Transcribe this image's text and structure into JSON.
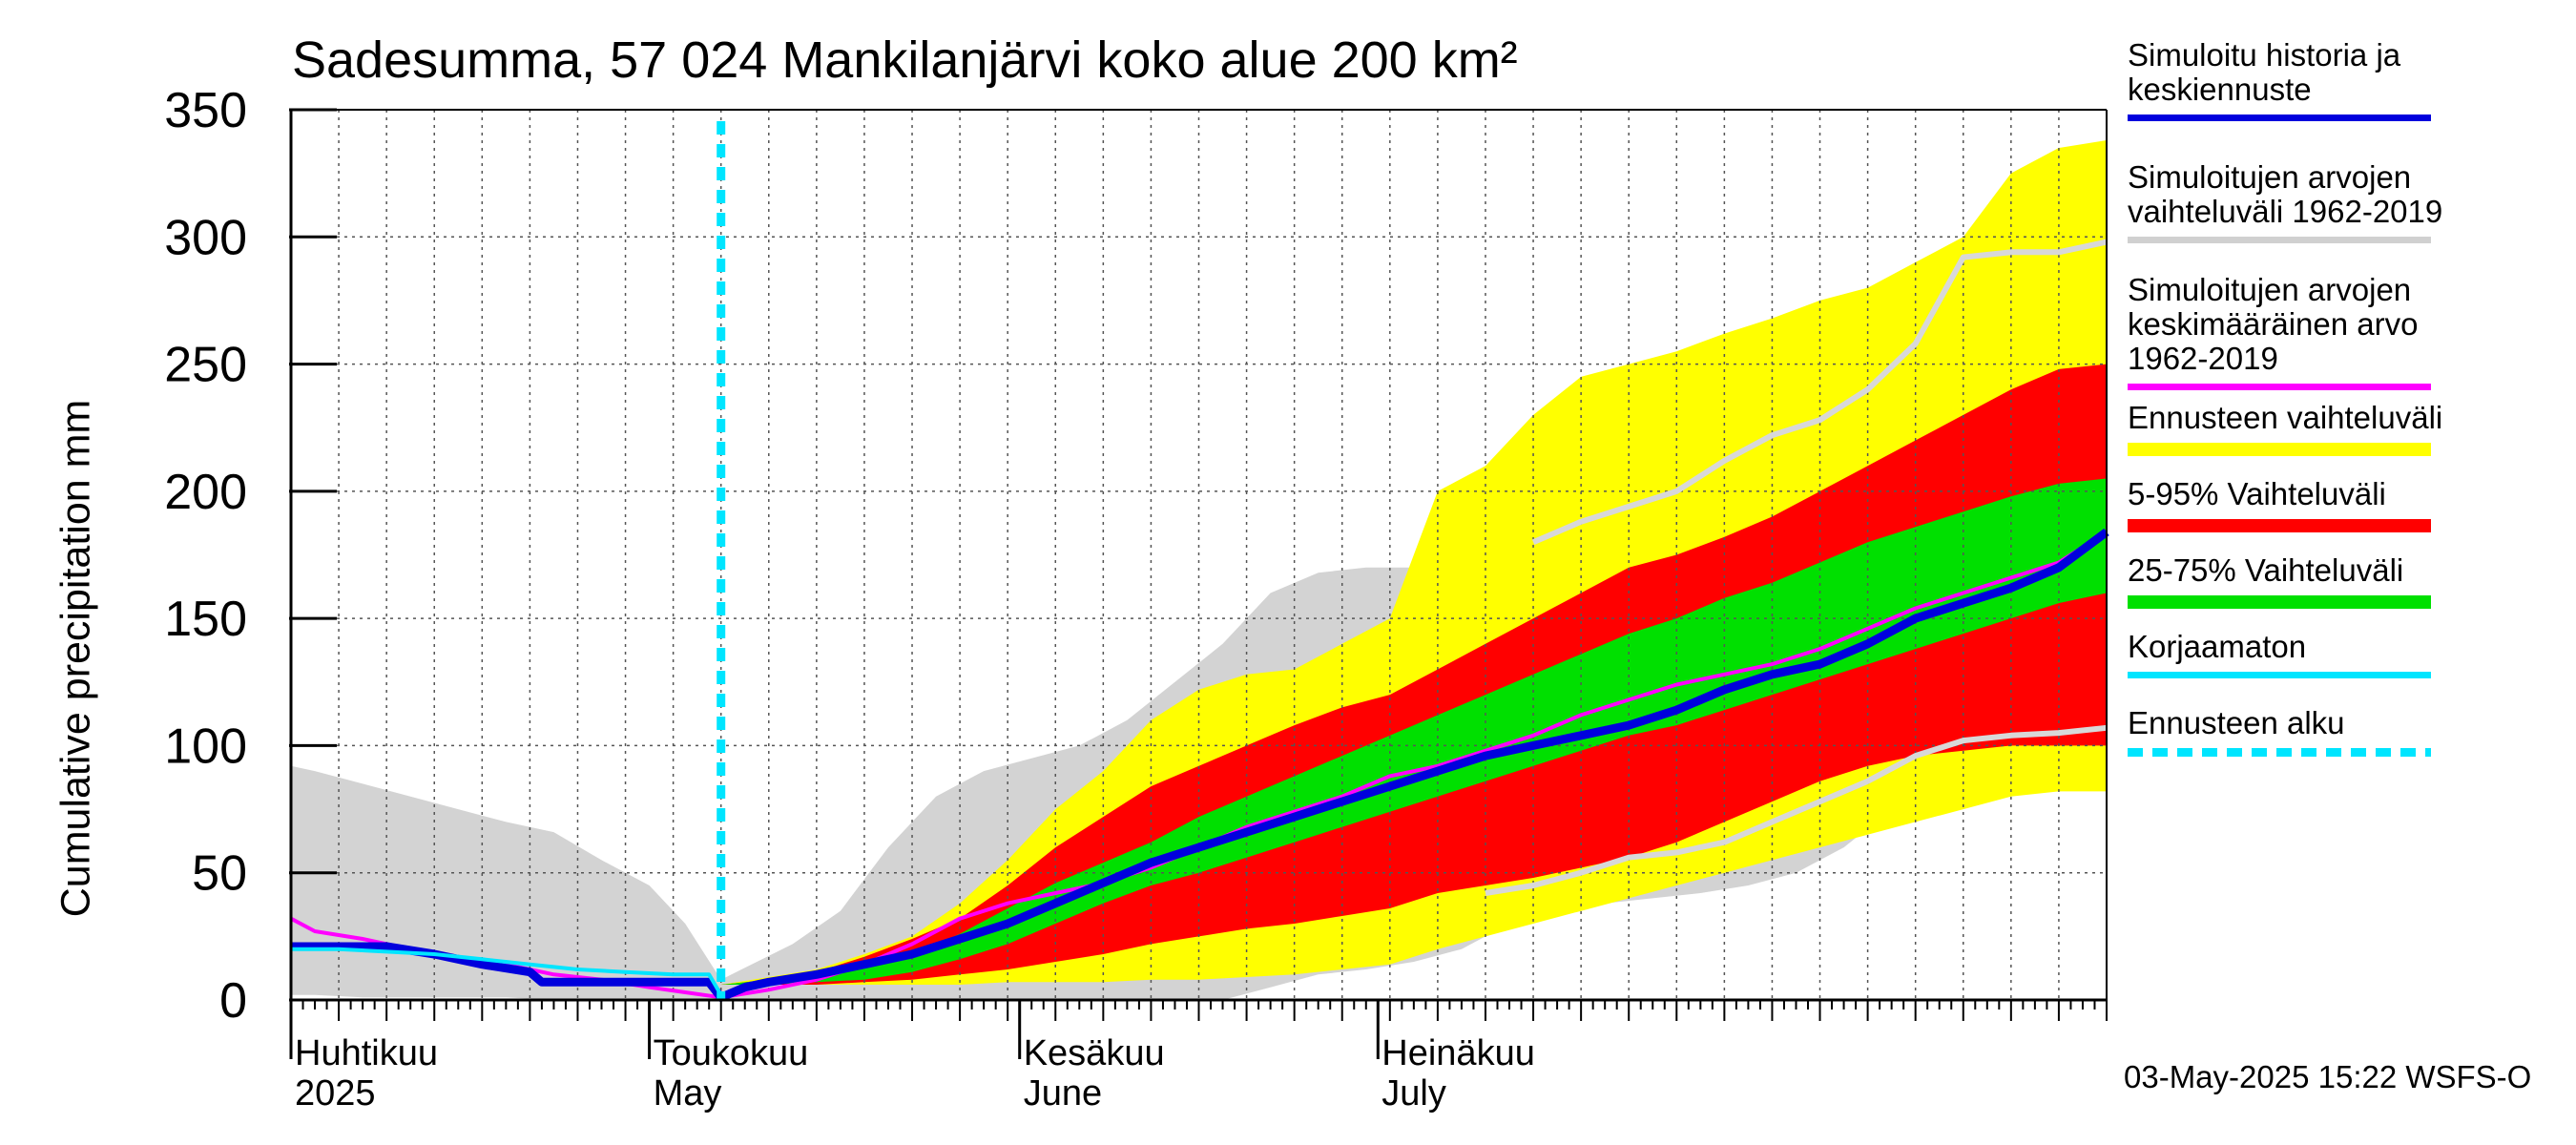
{
  "title": "Sadesumma, 57 024 Mankilanjärvi koko alue 200 km²",
  "timestamp": "03-May-2025 15:22 WSFS-O",
  "chart_data": {
    "type": "area",
    "ylabel": "Cumulative precipitation   mm",
    "ylim": [
      0,
      350
    ],
    "y_ticks": [
      0,
      50,
      100,
      150,
      200,
      250,
      300,
      350
    ],
    "x_range_days": [
      0,
      152
    ],
    "x_start_date": "2025-03-27",
    "forecast_start_day": 36,
    "month_labels": [
      {
        "day": 5,
        "fi": "Huhtikuu",
        "en": "2025"
      },
      {
        "day": 35,
        "fi": "Toukokuu",
        "en": "May"
      },
      {
        "day": 66,
        "fi": "Kesäkuu",
        "en": "June"
      },
      {
        "day": 96,
        "fi": "Heinäkuu",
        "en": "July"
      }
    ],
    "legend": [
      {
        "label": "Simuloitu historia ja\nkeskiennuste",
        "color": "#0000dd",
        "style": "line"
      },
      {
        "label": "Simuloitujen arvojen\nvaihteluväli 1962-2019",
        "color": "#d0d0d0",
        "style": "line"
      },
      {
        "label": "Simuloitujen arvojen\nkeskimääräinen arvo\n   1962-2019",
        "color": "#ff00ff",
        "style": "line"
      },
      {
        "label": "Ennusteen vaihteluväli",
        "color": "#ffff00",
        "style": "band"
      },
      {
        "label": "5-95% Vaihteluväli",
        "color": "#ff0000",
        "style": "band"
      },
      {
        "label": "25-75% Vaihteluväli",
        "color": "#00e000",
        "style": "band"
      },
      {
        "label": "Korjaamaton",
        "color": "#00e5ff",
        "style": "line"
      },
      {
        "label": "Ennusteen alku",
        "color": "#00e5ff",
        "style": "dotted"
      }
    ],
    "series": [
      {
        "key": "hist_band",
        "x": [
          0,
          2,
          6,
          10,
          14,
          18,
          22,
          26,
          30,
          33,
          36,
          39,
          42,
          46,
          50,
          54,
          58,
          62,
          66,
          70,
          74,
          78,
          82,
          86,
          90,
          94,
          98,
          102,
          106,
          110,
          114,
          118,
          122,
          126,
          130,
          134,
          138,
          142,
          146,
          150,
          152
        ],
        "upper": [
          92,
          90,
          85,
          80,
          75,
          70,
          66,
          55,
          45,
          30,
          8,
          15,
          22,
          35,
          60,
          80,
          90,
          95,
          100,
          110,
          125,
          140,
          160,
          168,
          170,
          170,
          175,
          182,
          190,
          195,
          205,
          215,
          225,
          235,
          250,
          275,
          295,
          295,
          295,
          298,
          298
        ],
        "lower": [
          2,
          2,
          1,
          1,
          1,
          1,
          0,
          0,
          0,
          0,
          0,
          0,
          0,
          0,
          0,
          0,
          0,
          0,
          0,
          0,
          0,
          0,
          5,
          10,
          12,
          15,
          20,
          30,
          35,
          38,
          40,
          42,
          45,
          50,
          60,
          75,
          85,
          95,
          100,
          103,
          105
        ]
      },
      {
        "key": "forecast_range",
        "x": [
          36,
          40,
          44,
          48,
          52,
          56,
          60,
          64,
          68,
          72,
          76,
          80,
          84,
          88,
          92,
          96,
          100,
          104,
          108,
          112,
          116,
          120,
          124,
          128,
          132,
          136,
          140,
          144,
          148,
          152
        ],
        "upper": [
          6,
          9,
          12,
          18,
          25,
          38,
          55,
          75,
          90,
          110,
          122,
          128,
          130,
          140,
          150,
          200,
          210,
          230,
          245,
          250,
          255,
          262,
          268,
          275,
          280,
          290,
          300,
          325,
          335,
          338
        ],
        "lower": [
          6,
          6,
          6,
          6,
          6,
          6,
          7,
          7,
          7,
          8,
          8,
          9,
          10,
          12,
          14,
          20,
          25,
          30,
          35,
          40,
          45,
          50,
          55,
          60,
          65,
          70,
          75,
          80,
          82,
          82
        ]
      },
      {
        "key": "p5_95",
        "x": [
          36,
          40,
          44,
          48,
          52,
          56,
          60,
          64,
          68,
          72,
          76,
          80,
          84,
          88,
          92,
          96,
          100,
          104,
          108,
          112,
          116,
          120,
          124,
          128,
          132,
          136,
          140,
          144,
          148,
          152
        ],
        "upper": [
          6,
          8,
          11,
          17,
          24,
          32,
          45,
          60,
          72,
          84,
          92,
          100,
          108,
          115,
          120,
          130,
          140,
          150,
          160,
          170,
          175,
          182,
          190,
          200,
          210,
          220,
          230,
          240,
          248,
          250
        ],
        "lower": [
          6,
          6,
          6,
          7,
          8,
          10,
          12,
          15,
          18,
          22,
          25,
          28,
          30,
          33,
          36,
          42,
          45,
          48,
          52,
          56,
          62,
          70,
          78,
          86,
          92,
          96,
          98,
          100,
          100,
          100
        ]
      },
      {
        "key": "p25_75",
        "x": [
          36,
          40,
          44,
          48,
          52,
          56,
          60,
          64,
          68,
          72,
          76,
          80,
          84,
          88,
          92,
          96,
          100,
          104,
          108,
          112,
          116,
          120,
          124,
          128,
          132,
          136,
          140,
          144,
          148,
          152
        ],
        "upper": [
          6,
          8,
          10,
          13,
          18,
          26,
          36,
          46,
          54,
          62,
          72,
          80,
          88,
          96,
          104,
          112,
          120,
          128,
          136,
          144,
          150,
          158,
          164,
          172,
          180,
          186,
          192,
          198,
          203,
          205
        ],
        "lower": [
          6,
          6,
          7,
          8,
          11,
          16,
          22,
          30,
          38,
          45,
          50,
          56,
          62,
          68,
          74,
          80,
          86,
          92,
          98,
          104,
          108,
          114,
          120,
          126,
          132,
          138,
          144,
          150,
          156,
          160
        ]
      },
      {
        "key": "mean_1962_2019",
        "color": "#ff00ff",
        "x": [
          0,
          2,
          6,
          10,
          14,
          18,
          22,
          26,
          30,
          33,
          36,
          40,
          44,
          48,
          52,
          56,
          60,
          64,
          68,
          72,
          76,
          80,
          84,
          88,
          92,
          96,
          100,
          104,
          108,
          112,
          116,
          120,
          124,
          128,
          132,
          136,
          140,
          144,
          148,
          152
        ],
        "y": [
          32,
          27,
          24,
          20,
          17,
          14,
          10,
          8,
          5,
          3,
          1,
          4,
          8,
          14,
          22,
          32,
          38,
          42,
          46,
          52,
          60,
          68,
          74,
          80,
          88,
          92,
          98,
          104,
          112,
          118,
          124,
          128,
          132,
          138,
          146,
          154,
          160,
          166,
          172,
          184
        ]
      },
      {
        "key": "uncorrected",
        "color": "#00e5ff",
        "x": [
          0,
          4,
          8,
          12,
          16,
          20,
          24,
          28,
          32,
          35,
          36
        ],
        "y": [
          20,
          20,
          19,
          18,
          16,
          14,
          12,
          11,
          10,
          10,
          2
        ]
      },
      {
        "key": "history_and_mean_forecast",
        "color": "#0000dd",
        "x": [
          0,
          4,
          8,
          12,
          16,
          20,
          21,
          24,
          28,
          32,
          35,
          36,
          38,
          40,
          44,
          48,
          52,
          56,
          60,
          64,
          68,
          72,
          76,
          80,
          84,
          88,
          92,
          96,
          100,
          104,
          108,
          112,
          116,
          120,
          124,
          128,
          132,
          136,
          140,
          144,
          148,
          152
        ],
        "y": [
          21,
          21,
          21,
          18,
          14,
          11,
          7,
          7,
          7,
          7,
          7,
          1,
          5,
          7,
          10,
          14,
          18,
          24,
          30,
          38,
          46,
          54,
          60,
          66,
          72,
          78,
          84,
          90,
          96,
          100,
          104,
          108,
          114,
          122,
          128,
          132,
          140,
          150,
          156,
          162,
          170,
          184
        ]
      },
      {
        "key": "sim_range_upper_line",
        "color": "#d8d8d8",
        "x": [
          104,
          108,
          112,
          116,
          120,
          124,
          128,
          132,
          136,
          140,
          144,
          148,
          152
        ],
        "y": [
          180,
          188,
          194,
          200,
          212,
          222,
          228,
          240,
          258,
          292,
          294,
          294,
          298
        ]
      },
      {
        "key": "sim_range_lower_line",
        "color": "#d8d8d8",
        "x": [
          100,
          104,
          108,
          112,
          116,
          120,
          124,
          128,
          132,
          136,
          140,
          144,
          148,
          152
        ],
        "y": [
          42,
          45,
          50,
          56,
          58,
          62,
          70,
          78,
          86,
          96,
          102,
          104,
          105,
          107
        ]
      }
    ]
  }
}
